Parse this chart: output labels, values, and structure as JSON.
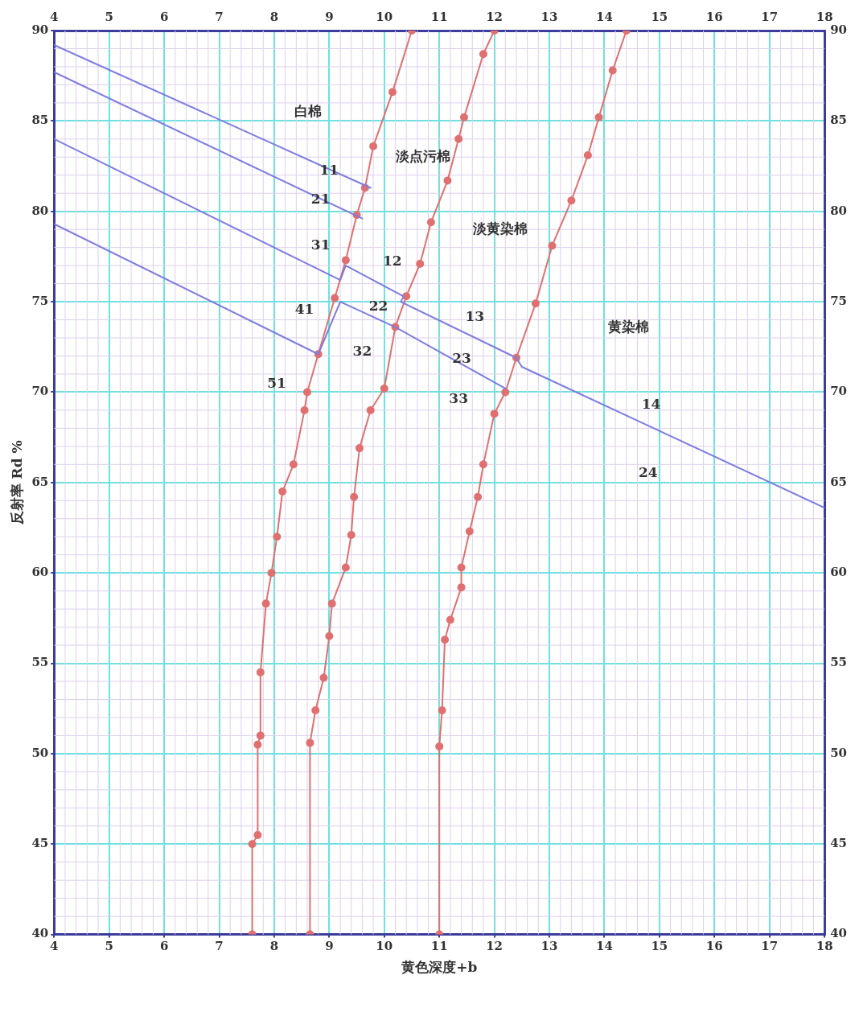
{
  "chart_data": {
    "type": "line",
    "xlabel": "黄色深度+b",
    "ylabel": "反射率 Rd %",
    "xlim": [
      4,
      18
    ],
    "xticks": [
      4,
      5,
      6,
      7,
      8,
      9,
      10,
      11,
      12,
      13,
      14,
      15,
      16,
      17,
      18
    ],
    "x2lim": [
      4,
      18
    ],
    "x2ticks": [
      4,
      5,
      6,
      7,
      8,
      9,
      10,
      11,
      12,
      13,
      14,
      15,
      16,
      17,
      18
    ],
    "ylim": [
      40,
      90
    ],
    "yticks": [
      40,
      45,
      50,
      55,
      60,
      65,
      70,
      75,
      80,
      85,
      90
    ],
    "y2lim": [
      40,
      90
    ],
    "y2ticks": [
      40,
      45,
      50,
      55,
      60,
      65,
      70,
      75,
      80,
      85,
      90
    ],
    "grid": true,
    "series": [
      {
        "color": "#7c7ce0",
        "marker": "none",
        "x": [
          4,
          9.75
        ],
        "values": [
          89.2,
          81.3
        ]
      },
      {
        "color": "#7c7ce0",
        "marker": "none",
        "x": [
          4,
          9.6
        ],
        "values": [
          87.7,
          79.6
        ]
      },
      {
        "color": "#7c7ce0",
        "marker": "none",
        "x": [
          4,
          9.2,
          9.3,
          10.35,
          10.3,
          12.4,
          12.5,
          18
        ],
        "values": [
          84.0,
          76.2,
          77.0,
          75.3,
          75.0,
          71.9,
          71.4,
          63.6
        ]
      },
      {
        "color": "#7c7ce0",
        "marker": "none",
        "x": [
          4,
          8.8,
          9.2,
          10.2,
          12.2
        ],
        "values": [
          79.3,
          72.1,
          75.0,
          73.6,
          70.2
        ]
      },
      {
        "color": "#e07070",
        "marker": "circle",
        "x": [
          7.6,
          7.6,
          7.7,
          7.7,
          7.75,
          7.75,
          7.85,
          7.95,
          8.05,
          8.15,
          8.35,
          8.55,
          8.6,
          8.8,
          9.1,
          9.3,
          9.5,
          9.65,
          9.8,
          10.15,
          10.5
        ],
        "values": [
          40,
          45,
          45.5,
          50.5,
          51,
          54.5,
          58.3,
          60,
          62,
          64.5,
          66,
          69,
          70,
          72.1,
          75.2,
          77.3,
          79.8,
          81.3,
          83.6,
          86.6,
          90
        ]
      },
      {
        "color": "#e07070",
        "marker": "circle",
        "x": [
          8.65,
          8.65,
          8.75,
          8.9,
          9.0,
          9.05,
          9.3,
          9.4,
          9.45,
          9.55,
          9.75,
          10.0,
          10.2,
          10.4,
          10.65,
          10.85,
          11.15,
          11.35,
          11.45,
          11.8,
          12.0
        ],
        "values": [
          40,
          50.6,
          52.4,
          54.2,
          56.5,
          58.3,
          60.3,
          62.1,
          64.2,
          66.9,
          69,
          70.2,
          73.6,
          75.3,
          77.1,
          79.4,
          81.7,
          84,
          85.2,
          88.7,
          90
        ]
      },
      {
        "color": "#e07070",
        "marker": "circle",
        "x": [
          11.0,
          11.0,
          11.05,
          11.1,
          11.2,
          11.4,
          11.4,
          11.55,
          11.7,
          11.8,
          12.0,
          12.2,
          12.4,
          12.75,
          13.05,
          13.4,
          13.7,
          13.9,
          14.15,
          14.4
        ],
        "values": [
          40,
          50.4,
          52.4,
          56.3,
          57.4,
          59.2,
          60.3,
          62.3,
          64.2,
          66,
          68.8,
          70,
          71.9,
          74.9,
          78.1,
          80.6,
          83.1,
          85.2,
          87.8,
          90
        ]
      }
    ],
    "annotations": [
      "白棉",
      "11",
      "淡点污棉",
      "21",
      "淡黄染棉",
      "31",
      "12",
      "41",
      "22",
      "13",
      "黄染棉",
      "32",
      "23",
      "51",
      "33",
      "14",
      "24"
    ]
  }
}
